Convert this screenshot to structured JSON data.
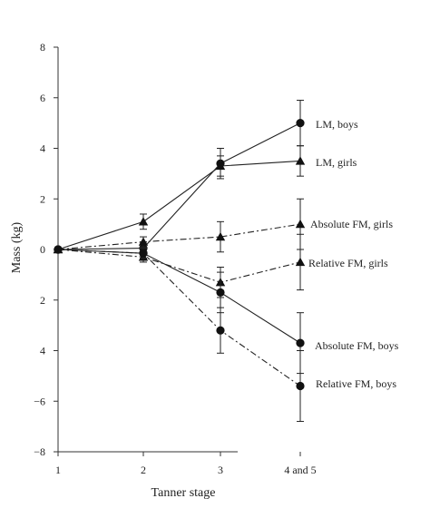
{
  "chart_data": {
    "type": "line",
    "title": "",
    "xlabel": "Tanner stage",
    "ylabel": "Mass (kg)",
    "categories": [
      "1",
      "2",
      "3",
      "4 and 5"
    ],
    "ylim": [
      -8,
      8
    ],
    "yticks": [
      {
        "value": 8,
        "label": "8"
      },
      {
        "value": 6,
        "label": "6"
      },
      {
        "value": 4,
        "label": "4"
      },
      {
        "value": 2,
        "label": "2"
      },
      {
        "value": 0,
        "label": "0"
      },
      {
        "value": -2,
        "label": "2"
      },
      {
        "value": -4,
        "label": "4"
      },
      {
        "value": -6,
        "label": "−6"
      },
      {
        "value": -8,
        "label": "−8"
      }
    ],
    "grid": false,
    "series": [
      {
        "name": "LM, boys",
        "marker": "circle",
        "dash": "solid",
        "values": [
          0,
          0.05,
          3.4,
          5.0
        ],
        "errors": [
          0,
          0.25,
          0.6,
          0.9
        ]
      },
      {
        "name": "LM, girls",
        "marker": "triangle",
        "dash": "solid",
        "values": [
          0,
          1.1,
          3.3,
          3.5
        ],
        "errors": [
          0,
          0.3,
          0.4,
          0.6
        ]
      },
      {
        "name": "Absolute FM, girls",
        "marker": "triangle",
        "dash": "dashdot",
        "values": [
          0,
          0.3,
          0.5,
          1.0
        ],
        "errors": [
          0,
          0.2,
          0.6,
          1.0
        ]
      },
      {
        "name": "Relative FM, girls",
        "marker": "triangle",
        "dash": "dashdot",
        "values": [
          0,
          -0.3,
          -1.3,
          -0.5
        ],
        "errors": [
          0,
          0.2,
          0.6,
          1.1
        ]
      },
      {
        "name": "Absolute FM, boys",
        "marker": "circle",
        "dash": "solid",
        "values": [
          0,
          -0.15,
          -1.7,
          -3.7
        ],
        "errors": [
          0,
          0.2,
          0.8,
          1.2
        ]
      },
      {
        "name": "Relative FM, boys",
        "marker": "circle",
        "dash": "dashdot",
        "values": [
          0,
          -0.15,
          -3.2,
          -5.4
        ],
        "errors": [
          0,
          0.2,
          0.9,
          1.4
        ]
      }
    ],
    "labels": {
      "lm_boys": "LM, boys",
      "lm_girls": "LM, girls",
      "abs_fm_girls": "Absolute FM, girls",
      "rel_fm_girls": "Relative FM, girls",
      "abs_fm_boys": "Absolute FM, boys",
      "rel_fm_boys": "Relative FM, boys"
    }
  }
}
